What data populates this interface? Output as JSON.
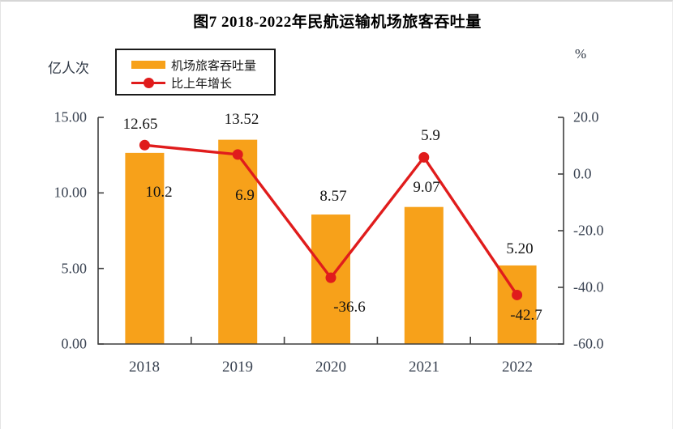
{
  "title": "图7 2018-2022年民航运输机场旅客吞吐量",
  "legend": {
    "bar_label": "机场旅客吞吐量",
    "line_label": "比上年增长"
  },
  "left_axis": {
    "unit": "亿人次",
    "ticks": [
      "15.00",
      "10.00",
      "5.00",
      "0.00"
    ]
  },
  "right_axis": {
    "unit": "%",
    "ticks": [
      "20.0",
      "0.0",
      "-20.0",
      "-40.0",
      "-60.0"
    ]
  },
  "colors": {
    "bar": "#F7A11A",
    "line": "#E01C1C",
    "axis": "#3f3f3f"
  },
  "chart_data": {
    "type": "bar",
    "subtype": "bar+line combo",
    "title": "图7 2018-2022年民航运输机场旅客吞吐量",
    "categories": [
      "2018",
      "2019",
      "2020",
      "2021",
      "2022"
    ],
    "series": [
      {
        "name": "机场旅客吞吐量",
        "type": "bar",
        "axis": "left",
        "values": [
          12.65,
          13.52,
          8.57,
          9.07,
          5.2
        ],
        "labels": [
          "12.65",
          "13.52",
          "8.57",
          "9.07",
          "5.20"
        ]
      },
      {
        "name": "比上年增长",
        "type": "line",
        "axis": "right",
        "values": [
          10.2,
          6.9,
          -36.6,
          5.9,
          -42.7
        ],
        "labels": [
          "10.2",
          "6.9",
          "-36.6",
          "5.9",
          "-42.7"
        ]
      }
    ],
    "left_ylabel": "亿人次",
    "right_ylabel": "%",
    "left_ylim": [
      0,
      15
    ],
    "right_ylim": [
      -60,
      20
    ],
    "grid": false,
    "legend_position": "top-left"
  }
}
